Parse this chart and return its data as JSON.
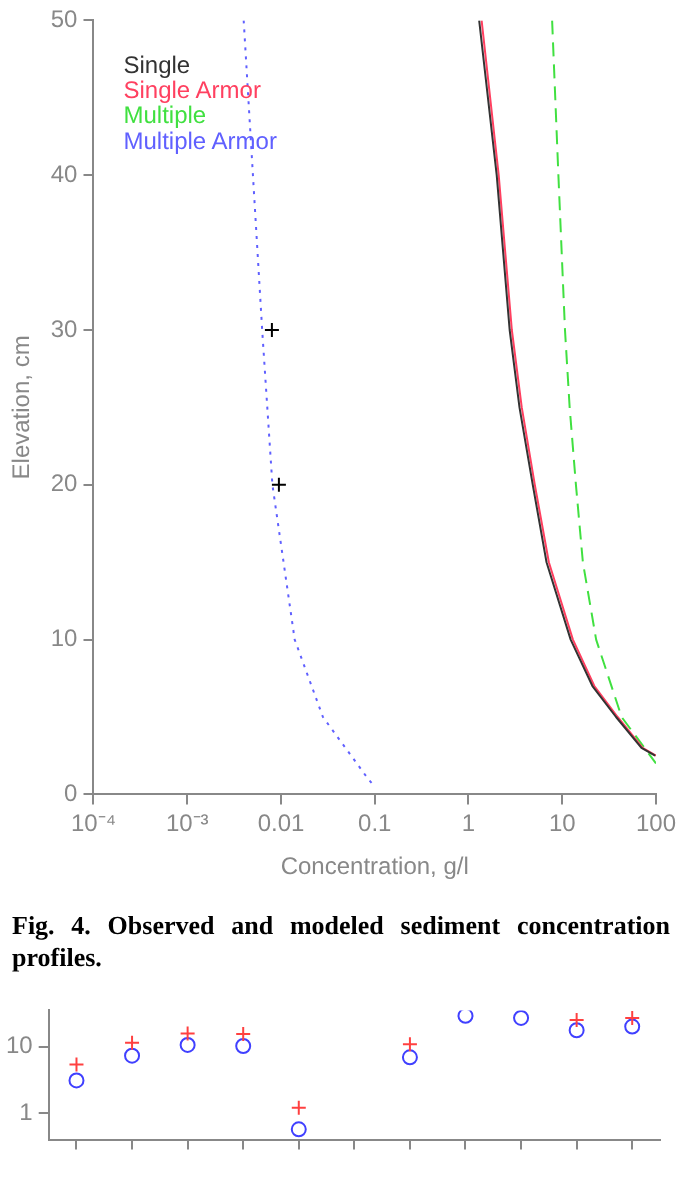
{
  "chart_data": [
    {
      "type": "line",
      "xlabel": "Concentration, g/l",
      "ylabel": "Elevation, cm",
      "log": "x",
      "xlim": [
        0.0001,
        100
      ],
      "xticks": [
        {
          "value": 0.0001,
          "label": "10⁻⁴"
        },
        {
          "value": 0.001,
          "label": "10⁻³"
        },
        0.01,
        0.1,
        1,
        10,
        100
      ],
      "ylim": [
        0,
        50
      ],
      "yticks": [
        0,
        10,
        20,
        30,
        40,
        50
      ],
      "grid": false,
      "legend": "top left",
      "annotations": [
        "Fig. 4. Observed and modeled sediment concentration profiles."
      ],
      "series": [
        {
          "name": "Single",
          "color": "#333333",
          "line_style": "solid",
          "marker": "none",
          "x": [
            1.3,
            2.0,
            2.75,
            3.5,
            4.85,
            6.8,
            12.3,
            21,
            37.5,
            70,
            98
          ],
          "values": [
            50,
            40,
            30,
            25,
            20,
            15,
            10,
            7,
            5,
            3,
            2.5
          ]
        },
        {
          "name": "Single Armor",
          "color": "#ff4060",
          "line_style": "solid",
          "marker": "none",
          "x": [
            1.38,
            2.1,
            2.9,
            3.7,
            5.1,
            7.2,
            13,
            22,
            39,
            72,
            100
          ],
          "values": [
            50,
            40,
            30,
            25,
            20,
            15,
            10,
            7,
            5,
            3,
            2.5
          ]
        },
        {
          "name": "Multiple",
          "color": "#40e040",
          "line_style": "dashed",
          "marker": "none",
          "x": [
            7.8,
            9.1,
            10.7,
            12,
            14,
            16.6,
            23,
            43,
            100
          ],
          "values": [
            50,
            40,
            30,
            25,
            20,
            15,
            10,
            5,
            2
          ]
        },
        {
          "name": "Multiple Armor",
          "color": "#6060ff",
          "line_style": "dotted",
          "marker": "none",
          "x": [
            0.004,
            0.0063,
            0.0081,
            0.014,
            0.028,
            0.085,
            0.1
          ],
          "values": [
            50,
            30,
            20,
            10,
            5,
            1,
            0.5
          ]
        },
        {
          "type": "scatter",
          "color": "#000000",
          "marker": "cross",
          "x": [
            0.008,
            0.0095
          ],
          "values": [
            30,
            20
          ]
        }
      ]
    },
    {
      "type": "scatter",
      "log": "y",
      "ylim": [
        0.4,
        35
      ],
      "yticks": [
        1,
        10
      ],
      "grid": false,
      "tick_labels": "y",
      "categories": [
        null,
        null,
        null,
        null,
        null,
        null,
        null,
        null,
        null,
        null,
        null
      ],
      "series": [
        {
          "color": "#ff4040",
          "marker": "cross",
          "values": [
            5.4,
            11.4,
            15.8,
            15.4,
            1.2,
            null,
            10.8,
            null,
            null,
            25,
            27
          ]
        },
        {
          "color": "#4040ff",
          "marker": "circle",
          "values": [
            3.1,
            7.3,
            10.6,
            10.2,
            0.57,
            null,
            6.9,
            29,
            27,
            17.6,
            20
          ]
        }
      ]
    }
  ]
}
